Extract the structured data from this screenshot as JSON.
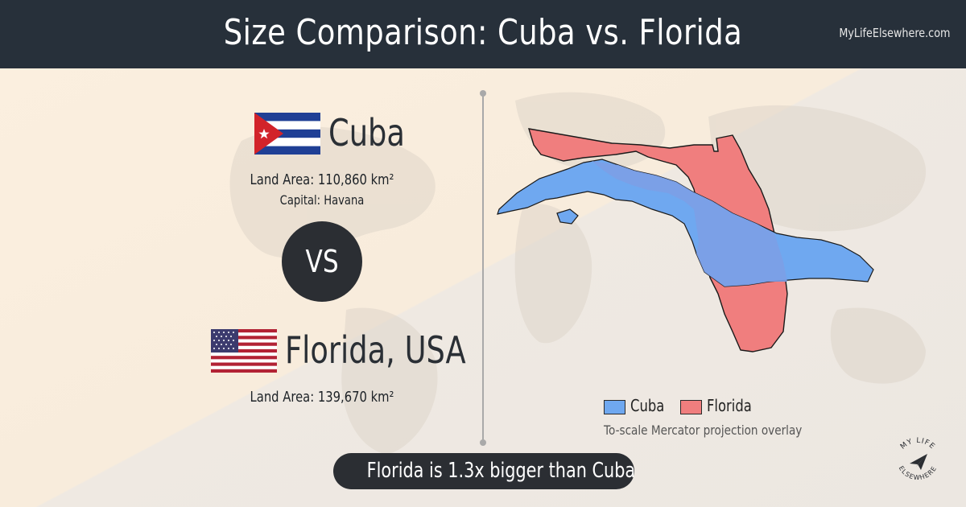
{
  "header": {
    "title": "Size Comparison: Cuba vs. Florida",
    "site": "MyLifeElsewhere.com"
  },
  "country_a": {
    "name": "Cuba",
    "flag_icon": "cuba-flag-icon",
    "land_area": "Land Area: 110,860 km²",
    "capital": "Capital: Havana",
    "map_color": "#6fa8f0"
  },
  "versus": {
    "label": "VS"
  },
  "country_b": {
    "name": "Florida, USA",
    "flag_icon": "usa-flag-icon",
    "land_area": "Land Area: 139,670 km²",
    "map_color": "#f07e7e"
  },
  "legend": {
    "items": [
      {
        "label": "Cuba",
        "color": "#6fa8f0"
      },
      {
        "label": "Florida",
        "color": "#f07e7e"
      }
    ],
    "note": "To-scale Mercator projection overlay"
  },
  "verdict": "Florida is 1.3x bigger than Cuba",
  "logo": {
    "text_top": "MY LIFE",
    "text_bottom": "ELSEWHERE",
    "icon": "paper-plane-icon"
  },
  "colors": {
    "header_bg": "#27303a",
    "dark_pill": "#2b2e33",
    "overlap": "#7c9fe6"
  }
}
